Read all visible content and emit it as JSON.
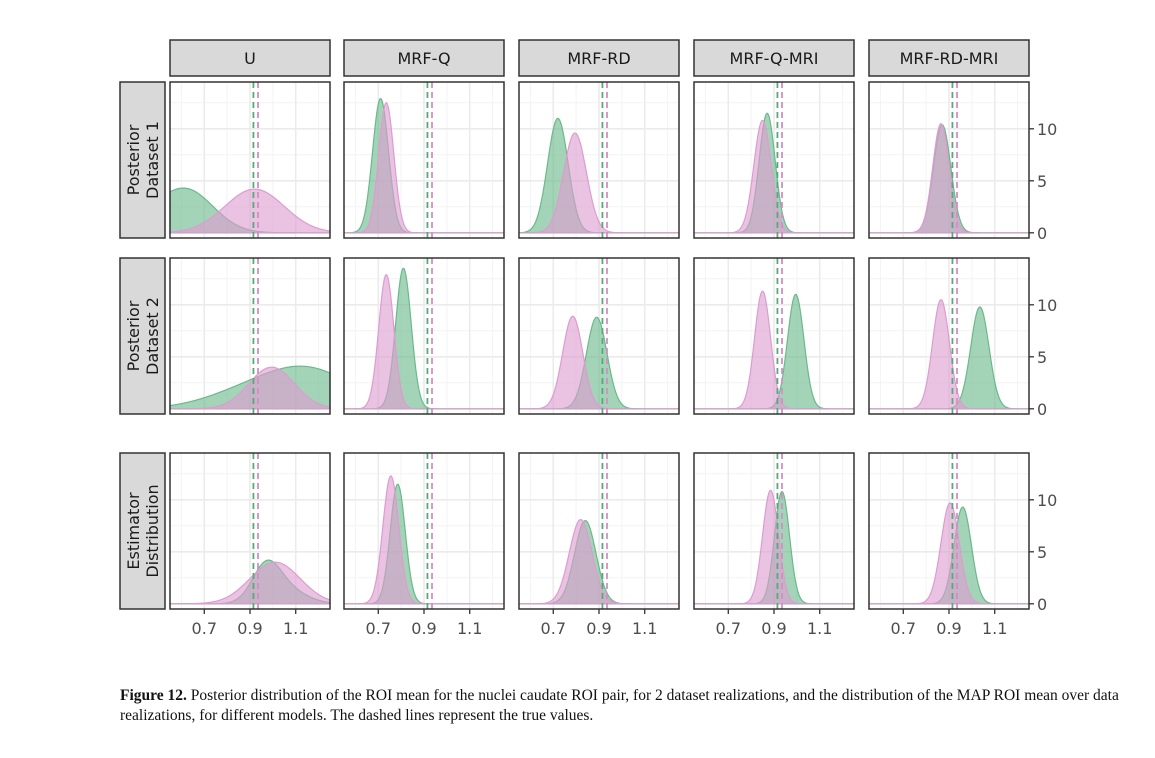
{
  "caption": {
    "label": "Figure 12.",
    "text": "Posterior distribution of the ROI mean for the nuclei caudate ROI pair, for 2 dataset realizations, and the distribution of the MAP ROI mean over data realizations, for different models. The dashed lines represent the true values."
  },
  "chart_data": {
    "type": "area",
    "layout": "facet grid (3 rows x 5 columns)",
    "columns": [
      "U",
      "MRF-Q",
      "MRF-RD",
      "MRF-Q-MRI",
      "MRF-RD-MRI"
    ],
    "rows": [
      [
        "Posterior",
        "Dataset 1"
      ],
      [
        "Posterior",
        "Dataset 2"
      ],
      [
        "Estimator",
        "Distribution"
      ]
    ],
    "xlim": [
      0.55,
      1.25
    ],
    "x_ticks": [
      0.7,
      0.9,
      1.1
    ],
    "x_tick_labels": [
      "0.7",
      "0.9",
      "1.1"
    ],
    "ylim": [
      -0.5,
      14.5
    ],
    "y_ticks": [
      0,
      5,
      10
    ],
    "y_tick_labels": [
      "0",
      "5",
      "10"
    ],
    "grid": true,
    "colors": {
      "green": "#6ab98c",
      "pink": "#dd9cd0",
      "strip_bg": "#d9d9d9",
      "panel_border": "#333333",
      "grid": "#ebebeb"
    },
    "true_values": {
      "green": 0.915,
      "pink": 0.935
    },
    "panels": [
      [
        {
          "green": [
            [
              0.62,
              0.12
            ],
            [
              0.22,
              0.06,
              1.6
            ]
          ],
          "pink": [
            [
              0.92,
              0.13
            ]
          ]
        },
        {
          "green": [
            [
              0.71,
              0.035
            ]
          ],
          "pink": [
            [
              0.735,
              0.033
            ]
          ]
        },
        {
          "green": [
            [
              0.72,
              0.045
            ]
          ],
          "pink": [
            [
              0.795,
              0.05
            ]
          ]
        },
        {
          "green": [
            [
              0.87,
              0.035
            ]
          ],
          "pink": [
            [
              0.85,
              0.038
            ]
          ]
        },
        {
          "green": [
            [
              0.87,
              0.038
            ]
          ],
          "pink": [
            [
              0.865,
              0.036
            ]
          ]
        }
      ],
      [
        {
          "green": [
            [
              0.85,
              0.18
            ],
            [
              0.2,
              1.15,
              3.5
            ]
          ],
          "pink": [
            [
              0.995,
              0.1
            ]
          ]
        },
        {
          "green": [
            [
              0.81,
              0.034
            ]
          ],
          "pink": [
            [
              0.735,
              0.033
            ]
          ]
        },
        {
          "green": [
            [
              0.89,
              0.045
            ]
          ],
          "pink": [
            [
              0.785,
              0.044
            ]
          ]
        },
        {
          "green": [
            [
              0.995,
              0.036
            ]
          ],
          "pink": [
            [
              0.85,
              0.035
            ]
          ]
        },
        {
          "green": [
            [
              1.035,
              0.04
            ]
          ],
          "pink": [
            [
              0.865,
              0.037
            ]
          ]
        }
      ],
      [
        {
          "green": [
            [
              1.045,
              0.09
            ],
            [
              0.06,
              0.97,
              2.0
            ]
          ],
          "pink": [
            [
              1.01,
              0.11
            ]
          ]
        },
        {
          "green": [
            [
              0.785,
              0.033
            ]
          ],
          "pink": [
            [
              0.755,
              0.035
            ]
          ]
        },
        {
          "green": [
            [
              0.84,
              0.047
            ]
          ],
          "pink": [
            [
              0.82,
              0.05
            ]
          ]
        },
        {
          "green": [
            [
              0.935,
              0.033
            ]
          ],
          "pink": [
            [
              0.885,
              0.035
            ]
          ]
        },
        {
          "green": [
            [
              0.96,
              0.038
            ]
          ],
          "pink": [
            [
              0.905,
              0.04
            ]
          ]
        }
      ]
    ],
    "peak_values": [
      [
        {
          "green": 4.3,
          "pink": 4.2
        },
        {
          "green": 12.9,
          "pink": 12.5
        },
        {
          "green": 11.0,
          "pink": 9.6
        },
        {
          "green": 11.5,
          "pink": 10.8
        },
        {
          "green": 10.4,
          "pink": 10.5
        }
      ],
      [
        {
          "green": 4.1,
          "pink": 4.0
        },
        {
          "green": 13.5,
          "pink": 12.9
        },
        {
          "green": 8.8,
          "pink": 8.9
        },
        {
          "green": 11.0,
          "pink": 11.3
        },
        {
          "green": 9.8,
          "pink": 10.5
        }
      ],
      [
        {
          "green": 4.2,
          "pink": 4.0
        },
        {
          "green": 11.5,
          "pink": 12.3
        },
        {
          "green": 8.0,
          "pink": 8.1
        },
        {
          "green": 10.8,
          "pink": 10.9
        },
        {
          "green": 9.3,
          "pink": 9.7
        }
      ]
    ]
  }
}
